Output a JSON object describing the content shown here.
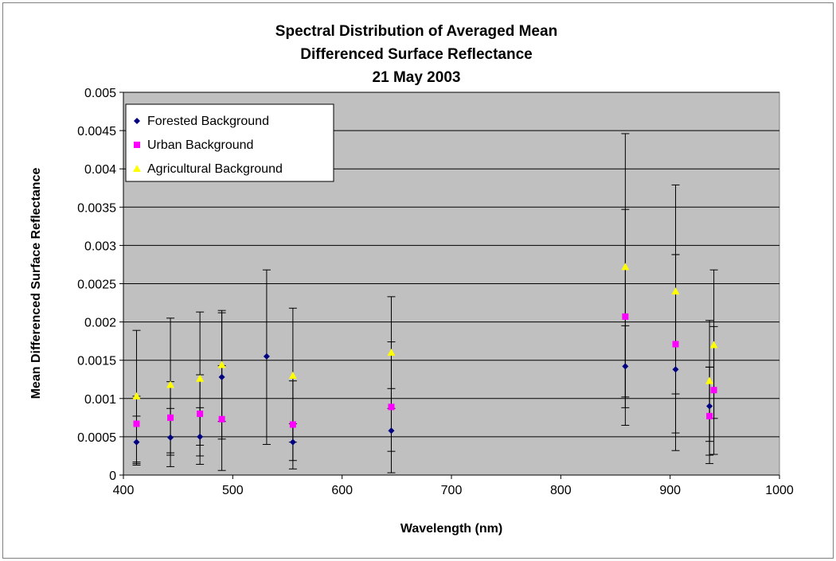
{
  "chart_data": {
    "type": "scatter",
    "title_lines": [
      "Spectral Distribution of Averaged Mean",
      "Differenced Surface Reflectance",
      "21 May 2003"
    ],
    "xlabel": "Wavelength (nm)",
    "ylabel": "Mean Differenced Surface Reflectance",
    "xlim": [
      400,
      1000
    ],
    "ylim": [
      0,
      0.005
    ],
    "x_ticks": [
      "400",
      "500",
      "600",
      "700",
      "800",
      "900",
      "1000"
    ],
    "y_ticks": [
      "0",
      "0.0005",
      "0.001",
      "0.0015",
      "0.002",
      "0.0025",
      "0.003",
      "0.0035",
      "0.004",
      "0.0045",
      "0.005"
    ],
    "grid": "horizontal",
    "legend_position": "top-left",
    "plot_background": "#c0c0c0",
    "series": [
      {
        "name": "Forested Background",
        "marker": "diamond",
        "color": "#000080",
        "points": [
          {
            "x": 412,
            "y": 0.00043,
            "lo": 0.00015,
            "hi": 0.00077
          },
          {
            "x": 443,
            "y": 0.00049,
            "lo": 0.00026,
            "hi": 0.00087
          },
          {
            "x": 470,
            "y": 0.0005,
            "lo": 0.00025,
            "hi": 0.00088
          },
          {
            "x": 490,
            "y": 0.00128,
            "lo": 0.00047,
            "hi": 0.00212
          },
          {
            "x": 531,
            "y": 0.00155,
            "lo": 0.0004,
            "hi": 0.00268
          },
          {
            "x": 555,
            "y": 0.00043,
            "lo": 0.00019,
            "hi": 0.00067
          },
          {
            "x": 645,
            "y": 0.00058,
            "lo": 3e-05,
            "hi": 0.00113
          },
          {
            "x": 859,
            "y": 0.00142,
            "lo": 0.00088,
            "hi": 0.00195
          },
          {
            "x": 905,
            "y": 0.00138,
            "lo": 0.00055,
            "hi": 0.00288
          },
          {
            "x": 936,
            "y": 0.0009,
            "lo": 0.00044,
            "hi": 0.00141
          }
        ]
      },
      {
        "name": "Urban Background",
        "marker": "square",
        "color": "#ff00ff",
        "points": [
          {
            "x": 412,
            "y": 0.00067,
            "lo": 0.00013,
            "hi": 0.00103
          },
          {
            "x": 443,
            "y": 0.00075,
            "lo": 0.00011,
            "hi": 0.00122
          },
          {
            "x": 470,
            "y": 0.0008,
            "lo": 0.00014,
            "hi": 0.00131
          },
          {
            "x": 490,
            "y": 0.00073,
            "lo": 6e-05,
            "hi": 0.00143
          },
          {
            "x": 555,
            "y": 0.00066,
            "lo": 8e-05,
            "hi": 0.00123
          },
          {
            "x": 645,
            "y": 0.00089,
            "lo": 0.00031,
            "hi": 0.00174
          },
          {
            "x": 859,
            "y": 0.00207,
            "lo": 0.00065,
            "hi": 0.00347
          },
          {
            "x": 905,
            "y": 0.00171,
            "lo": 0.00032,
            "hi": 0.00288
          },
          {
            "x": 936,
            "y": 0.00077,
            "lo": 0.00015,
            "hi": 0.00141
          },
          {
            "x": 940,
            "y": 0.00111,
            "lo": 0.00027,
            "hi": 0.00194
          }
        ]
      },
      {
        "name": "Agricultural Background",
        "marker": "triangle",
        "color": "#ffff00",
        "points": [
          {
            "x": 412,
            "y": 0.00103,
            "lo": 0.00017,
            "hi": 0.00189
          },
          {
            "x": 443,
            "y": 0.00118,
            "lo": 0.00029,
            "hi": 0.00205
          },
          {
            "x": 470,
            "y": 0.00126,
            "lo": 0.00039,
            "hi": 0.00213
          },
          {
            "x": 490,
            "y": 0.00144,
            "lo": 0.0007,
            "hi": 0.00215
          },
          {
            "x": 555,
            "y": 0.0013,
            "lo": 0.00043,
            "hi": 0.00218
          },
          {
            "x": 645,
            "y": 0.0016,
            "lo": 0.00087,
            "hi": 0.00233
          },
          {
            "x": 859,
            "y": 0.00272,
            "lo": 0.00102,
            "hi": 0.00446
          },
          {
            "x": 905,
            "y": 0.0024,
            "lo": 0.00106,
            "hi": 0.00379
          },
          {
            "x": 936,
            "y": 0.00123,
            "lo": 0.00026,
            "hi": 0.00202
          },
          {
            "x": 940,
            "y": 0.0017,
            "lo": 0.00074,
            "hi": 0.00268
          }
        ]
      }
    ]
  }
}
